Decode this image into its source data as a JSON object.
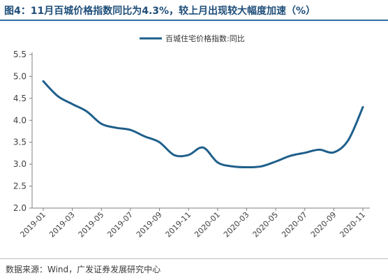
{
  "title": "图4：11月百城价格指数同比为4.3%，较上月出现较大幅度加速（%）",
  "source": "数据来源：Wind，广发证券发展研究中心",
  "chart_data": {
    "type": "line",
    "x": [
      "2019-01",
      "2019-02",
      "2019-03",
      "2019-04",
      "2019-05",
      "2019-06",
      "2019-07",
      "2019-08",
      "2019-09",
      "2019-10",
      "2019-11",
      "2019-12",
      "2020-01",
      "2020-02",
      "2020-03",
      "2020-04",
      "2020-05",
      "2020-06",
      "2020-07",
      "2020-08",
      "2020-09",
      "2020-10",
      "2020-11"
    ],
    "x_tick_labels": [
      "2019-01",
      "2019-03",
      "2019-05",
      "2019-07",
      "2019-09",
      "2019-11",
      "2020-01",
      "2020-03",
      "2020-05",
      "2020-07",
      "2020-09",
      "2020-11"
    ],
    "series": [
      {
        "name": "百城住宅价格指数:同比",
        "color": "#1f5f8b",
        "values": [
          4.89,
          4.55,
          4.37,
          4.2,
          3.92,
          3.83,
          3.78,
          3.63,
          3.5,
          3.21,
          3.21,
          3.38,
          3.04,
          2.95,
          2.93,
          2.95,
          3.06,
          3.19,
          3.26,
          3.33,
          3.27,
          3.55,
          4.3
        ]
      }
    ],
    "y_ticks": [
      "2.0",
      "2.5",
      "3.0",
      "3.5",
      "4.0",
      "4.5",
      "5.0",
      "5.5"
    ],
    "ylim": [
      2.0,
      5.5
    ],
    "grid": false,
    "legend_position": "top"
  }
}
